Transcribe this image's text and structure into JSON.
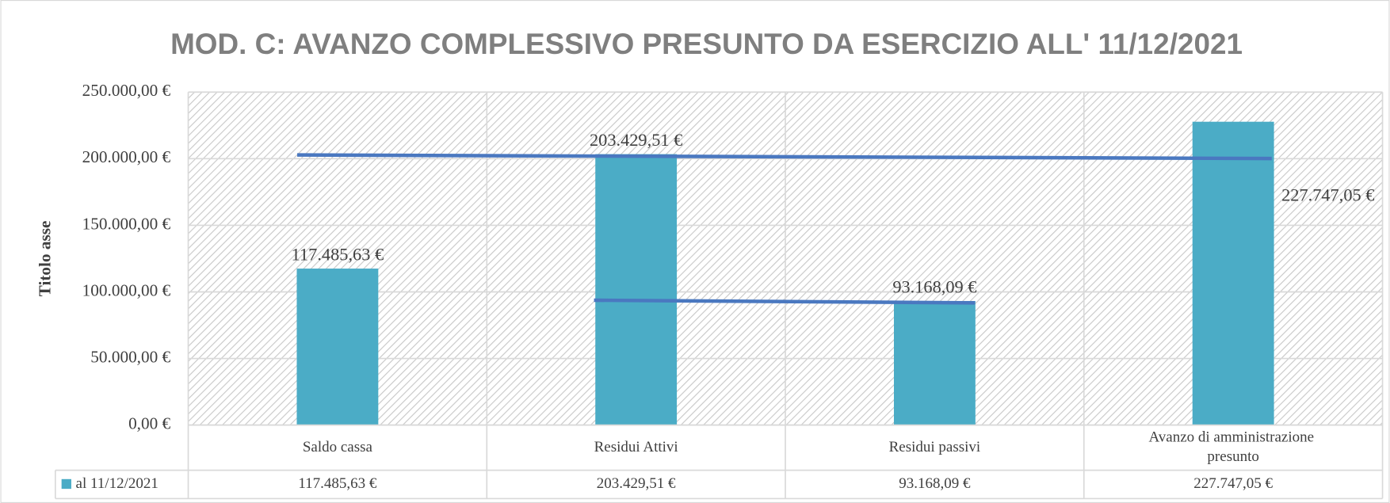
{
  "chart_data": {
    "type": "bar",
    "title": "MOD. C: AVANZO COMPLESSIVO PRESUNTO DA ESERCIZIO  ALL' 11/12/2021",
    "y_label": "Titolo asse",
    "categories": [
      "Saldo cassa",
      "Residui Attivi",
      "Residui passivi",
      "Avanzo di amministrazione presunto"
    ],
    "series": [
      {
        "name": "al 11/12/2021",
        "color": "#4bacc6",
        "values": [
          117485.63,
          203429.51,
          93168.09,
          227747.05
        ],
        "value_labels": [
          "117.485,63 €",
          "203.429,51 €",
          "93.168,09 €",
          "227.747,05 €"
        ]
      }
    ],
    "ylim": [
      0,
      250000
    ],
    "yticks": [
      {
        "value": 0,
        "label": "0,00 €"
      },
      {
        "value": 50000,
        "label": "50.000,00 €"
      },
      {
        "value": 100000,
        "label": "100.000,00 €"
      },
      {
        "value": 150000,
        "label": "150.000,00 €"
      },
      {
        "value": 200000,
        "label": "200.000,00 €"
      },
      {
        "value": 250000,
        "label": "250.000,00 €"
      }
    ],
    "grid": true,
    "data_table": true
  }
}
